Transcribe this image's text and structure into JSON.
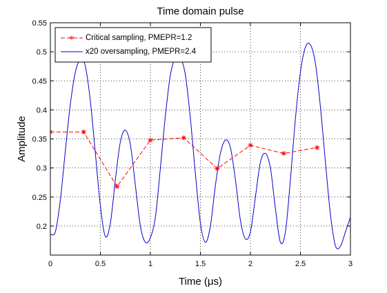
{
  "chart_data": {
    "type": "line",
    "title": "Time domain pulse",
    "xlabel": "Time (μs)",
    "ylabel": "Amplitude",
    "xlim": [
      0,
      3
    ],
    "ylim": [
      0.15,
      0.55
    ],
    "x_ticks": [
      0,
      0.5,
      1,
      1.5,
      2,
      2.5,
      3
    ],
    "x_tick_labels": [
      "0",
      "0.5",
      "1",
      "1.5",
      "2",
      "2.5",
      "3"
    ],
    "y_ticks": [
      0.2,
      0.25,
      0.3,
      0.35,
      0.4,
      0.45,
      0.5,
      0.55
    ],
    "y_tick_labels": [
      "0.2",
      "0.25",
      "0.3",
      "0.35",
      "0.4",
      "0.45",
      "0.5",
      "0.55"
    ],
    "grid": true,
    "grid_style": "dotted",
    "legend_position": "top-left",
    "series": [
      {
        "name": "Critical sampling, PMEPR=1.2",
        "color": "#ff0000",
        "line_style": "dashed",
        "marker": "asterisk",
        "x": [
          0,
          0.333,
          0.667,
          1.0,
          1.333,
          1.667,
          2.0,
          2.333,
          2.667
        ],
        "y": [
          0.362,
          0.362,
          0.268,
          0.348,
          0.352,
          0.299,
          0.339,
          0.325,
          0.335
        ]
      },
      {
        "name": "x20 oversampling, PMEPR=2.4",
        "color": "#0000cc",
        "line_style": "solid",
        "marker": "none",
        "x": [
          0,
          0.05,
          0.1,
          0.15,
          0.2,
          0.25,
          0.3,
          0.35,
          0.4,
          0.45,
          0.5,
          0.55,
          0.6,
          0.65,
          0.7,
          0.75,
          0.8,
          0.85,
          0.9,
          0.95,
          1.0,
          1.05,
          1.1,
          1.15,
          1.2,
          1.25,
          1.3,
          1.35,
          1.4,
          1.45,
          1.5,
          1.55,
          1.6,
          1.65,
          1.7,
          1.75,
          1.8,
          1.85,
          1.9,
          1.95,
          2.0,
          2.05,
          2.1,
          2.15,
          2.2,
          2.25,
          2.3,
          2.35,
          2.4,
          2.45,
          2.5,
          2.55,
          2.6,
          2.65,
          2.7,
          2.75,
          2.8,
          2.85,
          2.9,
          2.95,
          3.0
        ],
        "y": [
          0.186,
          0.19,
          0.245,
          0.33,
          0.41,
          0.465,
          0.486,
          0.475,
          0.415,
          0.325,
          0.235,
          0.182,
          0.205,
          0.28,
          0.345,
          0.365,
          0.34,
          0.27,
          0.2,
          0.172,
          0.18,
          0.215,
          0.3,
          0.39,
          0.46,
          0.49,
          0.49,
          0.46,
          0.385,
          0.29,
          0.205,
          0.172,
          0.2,
          0.27,
          0.325,
          0.348,
          0.335,
          0.28,
          0.21,
          0.178,
          0.19,
          0.25,
          0.31,
          0.325,
          0.3,
          0.23,
          0.172,
          0.19,
          0.28,
          0.385,
          0.465,
          0.508,
          0.512,
          0.48,
          0.405,
          0.31,
          0.22,
          0.166,
          0.165,
          0.19,
          0.215
        ]
      }
    ]
  }
}
